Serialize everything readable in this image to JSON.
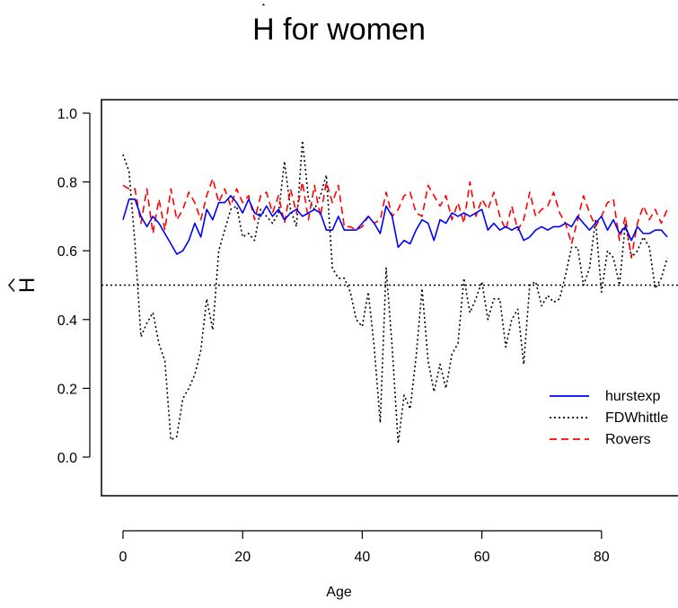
{
  "chart_data": {
    "type": "line",
    "title_hat": "H",
    "title_rest": " for women",
    "xlabel": "Age",
    "ylabel": "H",
    "xlim": [
      -2,
      92
    ],
    "ylim": [
      -0.02,
      1.05
    ],
    "xticks": [
      "0",
      "20",
      "40",
      "60",
      "80"
    ],
    "xtick_values": [
      0,
      20,
      40,
      60,
      80
    ],
    "yticks": [
      "0.0",
      "0.2",
      "0.4",
      "0.6",
      "0.8",
      "1.0"
    ],
    "ytick_values": [
      0.0,
      0.2,
      0.4,
      0.6,
      0.8,
      1.0
    ],
    "reference_line": 0.5,
    "legend_position": "bottom-right",
    "series": [
      {
        "name": "hurstexp",
        "color": "#0000ff",
        "dash": "solid",
        "x": [
          0,
          1,
          2,
          3,
          4,
          5,
          6,
          7,
          8,
          9,
          10,
          11,
          12,
          13,
          14,
          15,
          16,
          17,
          18,
          19,
          20,
          21,
          22,
          23,
          24,
          25,
          26,
          27,
          28,
          29,
          30,
          31,
          32,
          33,
          34,
          35,
          36,
          37,
          38,
          39,
          40,
          41,
          42,
          43,
          44,
          45,
          46,
          47,
          48,
          49,
          50,
          51,
          52,
          53,
          54,
          55,
          56,
          57,
          58,
          59,
          60,
          61,
          62,
          63,
          64,
          65,
          66,
          67,
          68,
          69,
          70,
          71,
          72,
          73,
          74,
          75,
          76,
          77,
          78,
          79,
          80,
          81,
          82,
          83,
          84,
          85,
          86,
          87,
          88,
          89,
          90,
          91
        ],
        "y": [
          0.69,
          0.75,
          0.75,
          0.7,
          0.67,
          0.7,
          0.68,
          0.65,
          0.62,
          0.59,
          0.6,
          0.63,
          0.68,
          0.64,
          0.72,
          0.69,
          0.74,
          0.74,
          0.76,
          0.74,
          0.71,
          0.75,
          0.71,
          0.7,
          0.73,
          0.7,
          0.72,
          0.69,
          0.71,
          0.72,
          0.7,
          0.71,
          0.72,
          0.71,
          0.66,
          0.66,
          0.7,
          0.66,
          0.66,
          0.66,
          0.68,
          0.7,
          0.68,
          0.65,
          0.73,
          0.7,
          0.61,
          0.63,
          0.62,
          0.66,
          0.69,
          0.68,
          0.63,
          0.69,
          0.68,
          0.71,
          0.7,
          0.71,
          0.7,
          0.71,
          0.72,
          0.66,
          0.68,
          0.66,
          0.67,
          0.66,
          0.67,
          0.63,
          0.64,
          0.66,
          0.67,
          0.66,
          0.67,
          0.67,
          0.68,
          0.67,
          0.7,
          0.68,
          0.66,
          0.68,
          0.7,
          0.66,
          0.69,
          0.65,
          0.67,
          0.63,
          0.67,
          0.65,
          0.65,
          0.66,
          0.66,
          0.64
        ]
      },
      {
        "name": "FDWhittle",
        "color": "#000000",
        "dash": "dotted",
        "x": [
          0,
          1,
          2,
          3,
          4,
          5,
          6,
          7,
          8,
          9,
          10,
          11,
          12,
          13,
          14,
          15,
          16,
          17,
          18,
          19,
          20,
          21,
          22,
          23,
          24,
          25,
          26,
          27,
          28,
          29,
          30,
          31,
          32,
          33,
          34,
          35,
          36,
          37,
          38,
          39,
          40,
          41,
          42,
          43,
          44,
          45,
          46,
          47,
          48,
          49,
          50,
          51,
          52,
          53,
          54,
          55,
          56,
          57,
          58,
          59,
          60,
          61,
          62,
          63,
          64,
          65,
          66,
          67,
          68,
          69,
          70,
          71,
          72,
          73,
          74,
          75,
          76,
          77,
          78,
          79,
          80,
          81,
          82,
          83,
          84,
          85,
          86,
          87,
          88,
          89,
          90,
          91
        ],
        "y": [
          0.88,
          0.83,
          0.62,
          0.35,
          0.39,
          0.42,
          0.33,
          0.28,
          0.05,
          0.06,
          0.17,
          0.2,
          0.24,
          0.31,
          0.46,
          0.37,
          0.6,
          0.66,
          0.72,
          0.73,
          0.64,
          0.65,
          0.63,
          0.72,
          0.7,
          0.68,
          0.71,
          0.86,
          0.72,
          0.67,
          0.92,
          0.75,
          0.72,
          0.76,
          0.82,
          0.55,
          0.52,
          0.52,
          0.48,
          0.4,
          0.38,
          0.48,
          0.32,
          0.1,
          0.55,
          0.32,
          0.04,
          0.18,
          0.14,
          0.29,
          0.49,
          0.28,
          0.19,
          0.27,
          0.2,
          0.3,
          0.33,
          0.52,
          0.42,
          0.46,
          0.51,
          0.4,
          0.46,
          0.46,
          0.32,
          0.4,
          0.43,
          0.27,
          0.5,
          0.51,
          0.44,
          0.47,
          0.45,
          0.46,
          0.53,
          0.61,
          0.61,
          0.5,
          0.55,
          0.69,
          0.48,
          0.6,
          0.58,
          0.5,
          0.68,
          0.58,
          0.6,
          0.64,
          0.61,
          0.49,
          0.52,
          0.58
        ]
      },
      {
        "name": "Rovers",
        "color": "#ff0000",
        "dash": "dashed",
        "x": [
          0,
          1,
          2,
          3,
          4,
          5,
          6,
          7,
          8,
          9,
          10,
          11,
          12,
          13,
          14,
          15,
          16,
          17,
          18,
          19,
          20,
          21,
          22,
          23,
          24,
          25,
          26,
          27,
          28,
          29,
          30,
          31,
          32,
          33,
          34,
          35,
          36,
          37,
          38,
          39,
          40,
          41,
          42,
          43,
          44,
          45,
          46,
          47,
          48,
          49,
          50,
          51,
          52,
          53,
          54,
          55,
          56,
          57,
          58,
          59,
          60,
          61,
          62,
          63,
          64,
          65,
          66,
          67,
          68,
          69,
          70,
          71,
          72,
          73,
          74,
          75,
          76,
          77,
          78,
          79,
          80,
          81,
          82,
          83,
          84,
          85,
          86,
          87,
          88,
          89,
          90,
          91
        ],
        "y": [
          0.79,
          0.78,
          0.78,
          0.68,
          0.78,
          0.65,
          0.75,
          0.66,
          0.78,
          0.69,
          0.72,
          0.77,
          0.74,
          0.69,
          0.76,
          0.81,
          0.74,
          0.78,
          0.73,
          0.78,
          0.74,
          0.76,
          0.69,
          0.76,
          0.77,
          0.71,
          0.76,
          0.68,
          0.78,
          0.71,
          0.8,
          0.69,
          0.79,
          0.7,
          0.8,
          0.74,
          0.79,
          0.67,
          0.67,
          0.66,
          0.67,
          0.7,
          0.68,
          0.69,
          0.77,
          0.7,
          0.72,
          0.76,
          0.77,
          0.71,
          0.7,
          0.79,
          0.76,
          0.73,
          0.76,
          0.69,
          0.74,
          0.68,
          0.8,
          0.7,
          0.75,
          0.72,
          0.77,
          0.7,
          0.66,
          0.73,
          0.66,
          0.69,
          0.77,
          0.7,
          0.72,
          0.73,
          0.77,
          0.71,
          0.68,
          0.62,
          0.69,
          0.76,
          0.71,
          0.67,
          0.7,
          0.74,
          0.75,
          0.63,
          0.7,
          0.58,
          0.68,
          0.73,
          0.69,
          0.72,
          0.68,
          0.72
        ]
      }
    ]
  }
}
